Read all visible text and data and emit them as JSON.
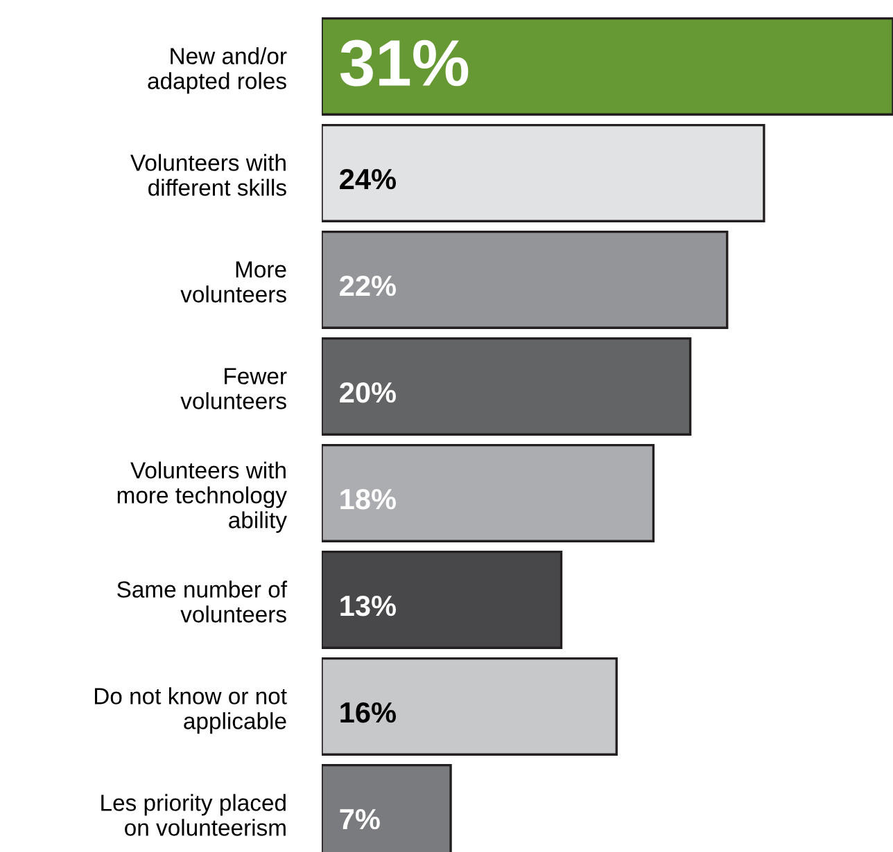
{
  "chart_data": {
    "type": "bar",
    "orientation": "horizontal",
    "categories": [
      "New and/or\nadapted roles",
      "Volunteers with\ndifferent skills",
      "More\nvolunteers",
      "Fewer\nvolunteers",
      "Volunteers with\nmore technology\nability",
      "Same number of\nvolunteers",
      "Do not know or not\napplicable",
      "Les priority placed\non volunteerism"
    ],
    "values": [
      31,
      24,
      22,
      20,
      18,
      13,
      16,
      7
    ],
    "colors": [
      "#669933",
      "#e1e2e4",
      "#939598",
      "#636466",
      "#acadb0",
      "#48484a",
      "#c7c8ca",
      "#7a7b7e"
    ],
    "value_labels": [
      "31%",
      "24%",
      "22%",
      "20%",
      "18%",
      "13%",
      "16%",
      "7%"
    ],
    "xlim": [
      0,
      31
    ],
    "tick_labels": "y",
    "grid": false,
    "legend": false
  }
}
